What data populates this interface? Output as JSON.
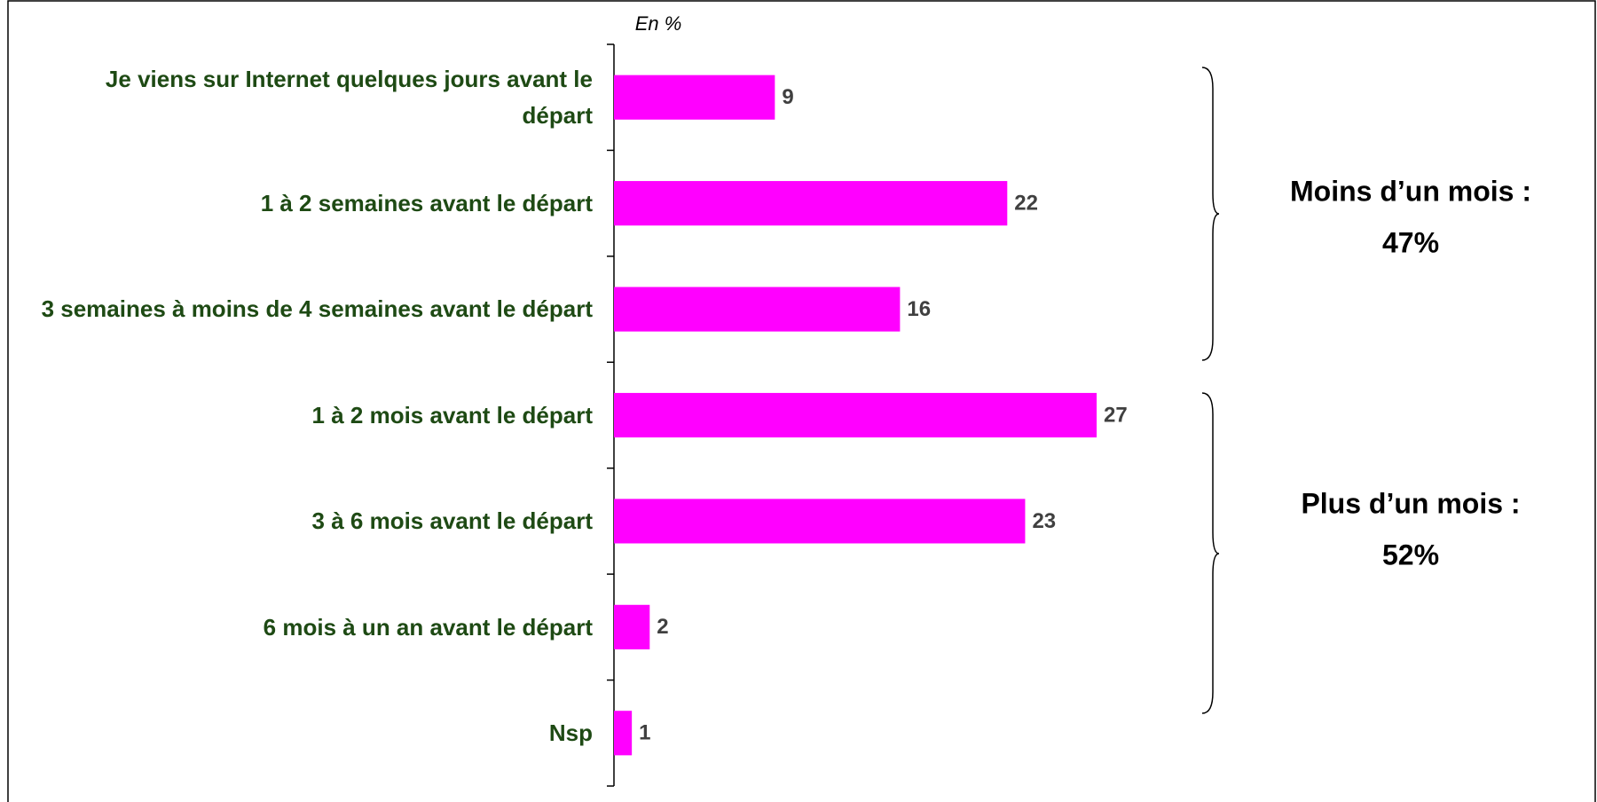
{
  "chart_data": {
    "type": "bar",
    "orientation": "horizontal",
    "unit_label": "En %",
    "categories": [
      "Je viens sur Internet quelques jours avant le départ",
      "1 à 2 semaines avant le départ",
      "3 semaines à moins de 4 semaines avant le départ",
      "1 à 2 mois avant le départ",
      "3 à 6 mois avant le départ",
      "6 mois à un an avant le départ",
      "Nsp"
    ],
    "values": [
      9,
      22,
      16,
      27,
      23,
      2,
      1
    ],
    "color": "#ff00ff",
    "xlim": [
      0,
      40
    ],
    "annotations": [
      [
        "Moins d’un mois :",
        "47%"
      ],
      [
        "Plus d’un mois :",
        "52%"
      ]
    ]
  }
}
